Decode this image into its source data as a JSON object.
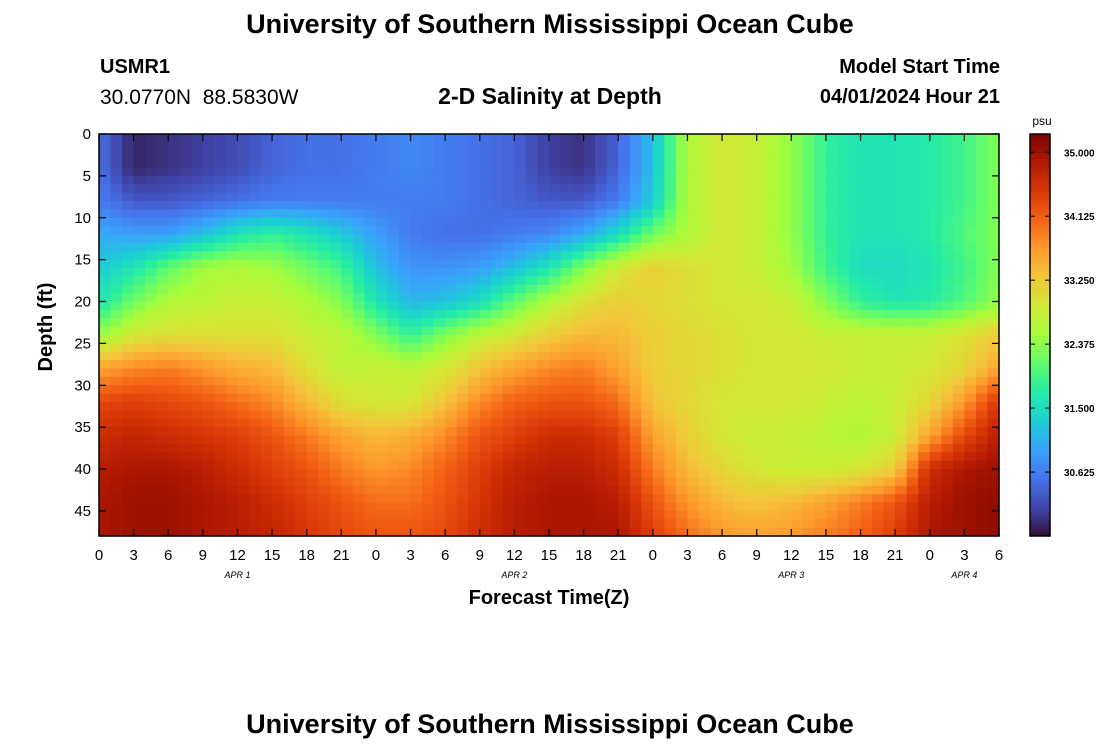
{
  "header": {
    "title": "University of Southern Mississippi Ocean Cube",
    "station_id": "USMR1",
    "coords": "30.0770N  88.5830W",
    "model_label": "Model Start Time",
    "model_time": "04/01/2024 Hour 21"
  },
  "footer": {
    "title": "University of Southern Mississippi Ocean Cube"
  },
  "chart_data": {
    "type": "heatmap",
    "title": "2-D Salinity at Depth",
    "xlabel": "Forecast Time(Z)",
    "ylabel": "Depth (ft)",
    "x_range_hours": [
      0,
      78
    ],
    "y_range_ft": [
      0,
      48
    ],
    "x_tick_labels": [
      "0",
      "3",
      "6",
      "9",
      "12",
      "15",
      "18",
      "21",
      "0",
      "3",
      "6",
      "9",
      "12",
      "15",
      "18",
      "21",
      "0",
      "3",
      "6",
      "9",
      "12",
      "15",
      "18",
      "21",
      "0",
      "3",
      "6"
    ],
    "day_labels": [
      {
        "label": "APR 1",
        "hour": 12
      },
      {
        "label": "APR 2",
        "hour": 36
      },
      {
        "label": "APR 3",
        "hour": 60
      },
      {
        "label": "APR 4",
        "hour": 75
      }
    ],
    "y_ticks": [
      0,
      5,
      10,
      15,
      20,
      25,
      30,
      35,
      40,
      45
    ],
    "colorbar": {
      "unit": "psu",
      "min": 29.75,
      "max": 35.25,
      "ticks": [
        "35.000",
        "34.125",
        "33.250",
        "32.375",
        "31.500",
        "30.625"
      ],
      "colors": [
        "#30123b",
        "#4145ab",
        "#4675ed",
        "#39a2fc",
        "#1bcfd4",
        "#24eca6",
        "#61fc6c",
        "#a4fc3b",
        "#d1e834",
        "#f3c63a",
        "#fe9b2d",
        "#f36315",
        "#d93806",
        "#b11901",
        "#7a0402"
      ]
    },
    "grid": false,
    "salinity_psu": {
      "note_rows": "depth_ft",
      "depth_ft": [
        0,
        4,
        8,
        12,
        16,
        20,
        24,
        28,
        32,
        36,
        40,
        44,
        48
      ],
      "hour": [
        0,
        3,
        6,
        9,
        12,
        15,
        18,
        21,
        24,
        27,
        30,
        33,
        36,
        39,
        42,
        45,
        48,
        51,
        54,
        57,
        60,
        63,
        66,
        69,
        72,
        75,
        78
      ],
      "values": [
        [
          30.5,
          29.9,
          30.0,
          30.1,
          30.2,
          30.4,
          30.5,
          30.5,
          30.6,
          30.7,
          30.6,
          30.5,
          30.4,
          30.1,
          30.0,
          30.4,
          31.2,
          32.6,
          32.9,
          32.8,
          32.4,
          31.8,
          31.6,
          31.6,
          31.7,
          31.9,
          32.3
        ],
        [
          30.5,
          29.9,
          30.0,
          30.1,
          30.2,
          30.4,
          30.5,
          30.5,
          30.6,
          30.7,
          30.6,
          30.5,
          30.4,
          30.1,
          30.0,
          30.4,
          31.2,
          32.6,
          32.9,
          32.8,
          32.4,
          31.8,
          31.6,
          31.6,
          31.7,
          31.9,
          32.3
        ],
        [
          30.6,
          30.3,
          30.3,
          30.4,
          30.5,
          30.6,
          30.6,
          30.6,
          30.6,
          30.6,
          30.6,
          30.5,
          30.4,
          30.3,
          30.3,
          30.6,
          31.3,
          32.6,
          32.9,
          32.8,
          32.4,
          31.8,
          31.6,
          31.6,
          31.7,
          31.9,
          32.3
        ],
        [
          31.0,
          30.9,
          30.9,
          31.2,
          31.6,
          31.8,
          31.6,
          31.3,
          30.9,
          30.6,
          30.5,
          30.5,
          30.6,
          30.7,
          31.0,
          31.5,
          32.2,
          32.6,
          32.9,
          32.8,
          32.4,
          31.8,
          31.6,
          31.6,
          31.7,
          32.0,
          32.3
        ],
        [
          31.3,
          31.6,
          32.1,
          32.5,
          32.6,
          32.5,
          32.2,
          31.9,
          31.2,
          30.8,
          30.8,
          30.9,
          31.2,
          31.6,
          32.3,
          32.9,
          33.2,
          33.0,
          32.9,
          32.8,
          32.5,
          31.9,
          31.5,
          31.5,
          31.6,
          31.9,
          32.3
        ],
        [
          31.6,
          32.2,
          32.6,
          32.7,
          32.8,
          32.8,
          32.6,
          32.3,
          31.6,
          31.1,
          31.2,
          31.5,
          32.1,
          32.6,
          33.0,
          33.2,
          33.1,
          33.0,
          32.9,
          32.9,
          32.8,
          32.3,
          31.8,
          31.6,
          31.7,
          32.0,
          32.4
        ],
        [
          32.4,
          32.9,
          33.0,
          33.0,
          33.0,
          33.0,
          32.8,
          32.7,
          32.3,
          31.8,
          32.3,
          32.7,
          32.9,
          33.2,
          33.4,
          33.4,
          33.2,
          33.1,
          33.0,
          32.9,
          32.9,
          32.8,
          32.8,
          32.8,
          32.8,
          33.0,
          33.2
        ],
        [
          33.6,
          33.8,
          33.9,
          33.7,
          33.5,
          33.4,
          33.0,
          32.7,
          32.8,
          32.7,
          32.9,
          33.3,
          33.6,
          33.8,
          33.9,
          33.6,
          33.2,
          33.1,
          33.0,
          32.9,
          32.9,
          32.9,
          32.8,
          32.8,
          32.9,
          33.1,
          33.6
        ],
        [
          34.3,
          34.4,
          34.3,
          34.2,
          34.0,
          33.8,
          33.4,
          33.0,
          32.9,
          32.9,
          33.3,
          33.8,
          34.1,
          34.2,
          34.2,
          34.0,
          33.3,
          33.1,
          32.9,
          32.9,
          32.9,
          32.8,
          32.7,
          32.8,
          33.1,
          33.7,
          34.5
        ],
        [
          34.6,
          34.7,
          34.6,
          34.5,
          34.4,
          34.2,
          33.9,
          33.6,
          33.4,
          33.5,
          33.8,
          34.2,
          34.4,
          34.6,
          34.6,
          34.4,
          33.6,
          33.2,
          32.9,
          32.8,
          32.8,
          32.7,
          32.6,
          32.8,
          33.6,
          34.3,
          34.8
        ],
        [
          34.8,
          34.9,
          34.9,
          34.8,
          34.6,
          34.4,
          34.2,
          33.9,
          33.7,
          33.8,
          34.1,
          34.4,
          34.7,
          34.8,
          34.8,
          34.6,
          33.9,
          33.4,
          33.1,
          32.9,
          32.8,
          32.8,
          32.9,
          33.2,
          34.6,
          34.9,
          35.0
        ],
        [
          34.9,
          35.0,
          35.0,
          34.9,
          34.8,
          34.6,
          34.4,
          34.2,
          34.0,
          34.0,
          34.2,
          34.5,
          34.8,
          34.9,
          34.9,
          34.8,
          34.2,
          33.7,
          33.4,
          33.3,
          33.4,
          33.6,
          33.9,
          34.2,
          34.8,
          35.0,
          35.1
        ],
        [
          34.9,
          35.0,
          35.0,
          34.9,
          34.8,
          34.7,
          34.5,
          34.3,
          34.2,
          34.2,
          34.3,
          34.6,
          34.8,
          34.9,
          34.9,
          34.9,
          34.4,
          34.0,
          33.7,
          33.6,
          33.7,
          33.9,
          34.1,
          34.4,
          34.9,
          35.0,
          35.1
        ]
      ]
    }
  }
}
